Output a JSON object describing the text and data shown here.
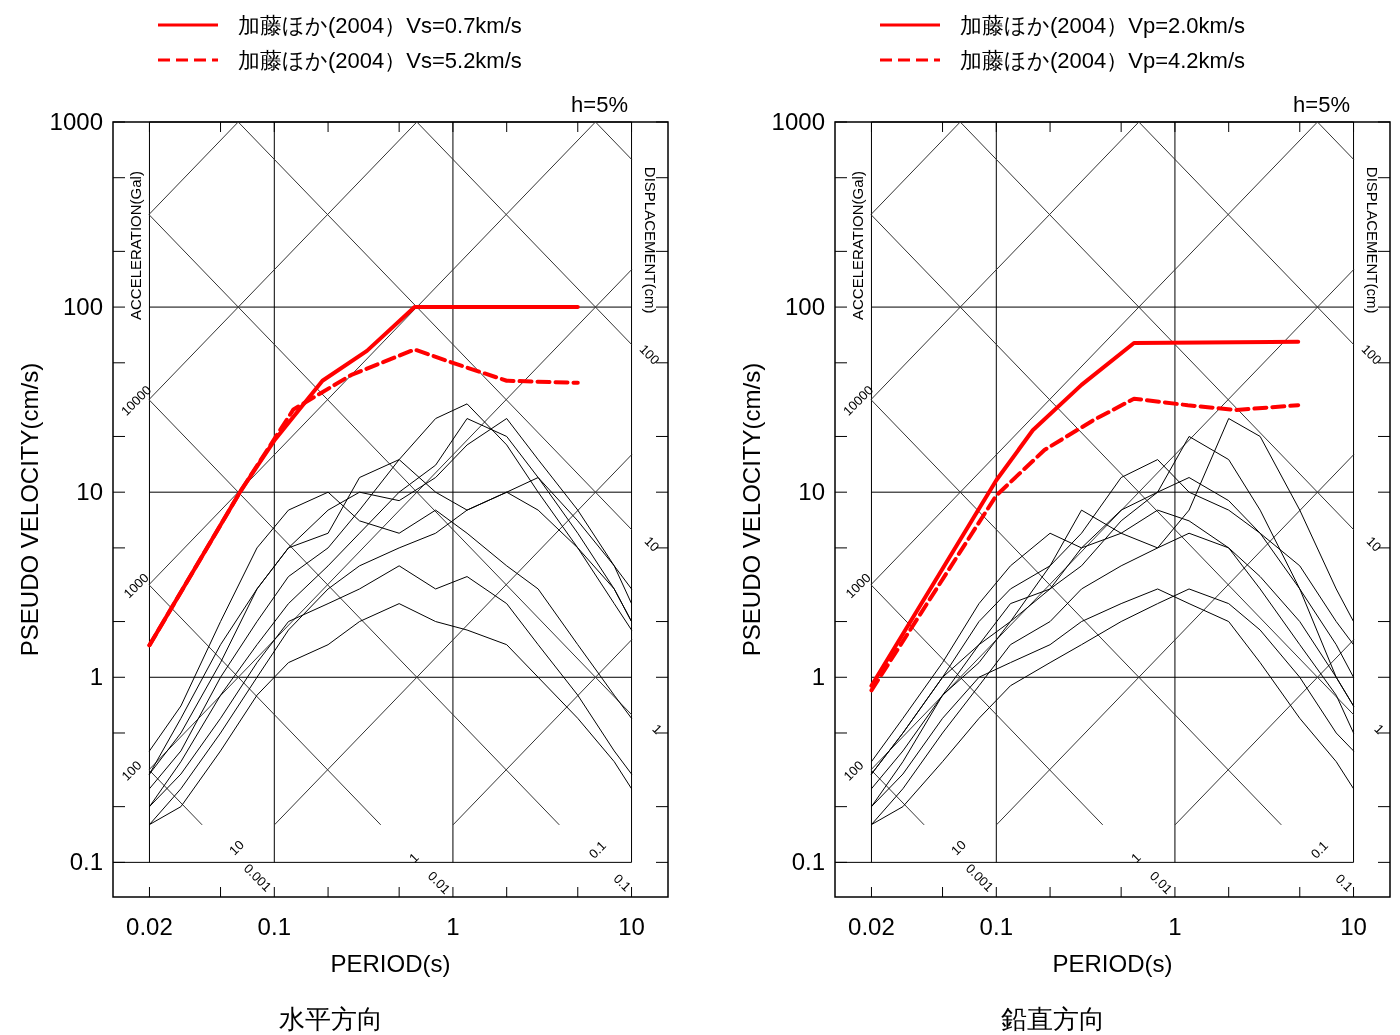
{
  "chart_data": [
    {
      "type": "line",
      "title": "水平方向",
      "xlabel": "PERIOD(s)",
      "ylabel": "PSEUDO VELOCITY(cm/s)",
      "log": "xy",
      "grid": true,
      "legend": "top",
      "xlim": [
        0.0125,
        16
      ],
      "ylim": [
        0.065,
        1000
      ],
      "xticks": [
        0.02,
        {
          "value": 0.05,
          "label": null
        },
        0.1,
        {
          "value": 0.2,
          "label": null
        },
        {
          "value": 0.5,
          "label": null
        },
        1,
        {
          "value": 2,
          "label": null
        },
        {
          "value": 5,
          "label": null
        },
        10
      ],
      "yticks": [
        0.1,
        {
          "value": 0.2,
          "label": null
        },
        {
          "value": 0.5,
          "label": null
        },
        1,
        {
          "value": 2,
          "label": null
        },
        {
          "value": 5,
          "label": null
        },
        10,
        {
          "value": 20,
          "label": null
        },
        {
          "value": 50,
          "label": null
        },
        100,
        {
          "value": 200,
          "label": null
        },
        {
          "value": 500,
          "label": null
        },
        1000
      ],
      "x": [
        0.02,
        0.03,
        0.05,
        0.08,
        0.12,
        0.2,
        0.3,
        0.5,
        0.8,
        1.2,
        2,
        3,
        5,
        8,
        10
      ],
      "annotations": [
        "h=5%",
        "ACCELERATION(Gal)",
        "DISPLACEMENT(cm)",
        "10000",
        "100",
        "1000",
        "10",
        "100",
        "1",
        "10",
        "0.001",
        "1",
        "0.01",
        "0.1",
        "0.1"
      ],
      "series": [
        {
          "color": "#333333",
          "x": [
            0.02,
            0.0628
          ],
          "values": [
            318.3,
            1000
          ]
        },
        {
          "color": "#333333",
          "x": [
            0.02,
            0.628
          ],
          "values": [
            31.83,
            1000
          ]
        },
        {
          "color": "#333333",
          "x": [
            0.02,
            6.28
          ],
          "values": [
            3.183,
            1000
          ]
        },
        {
          "color": "#333333",
          "x": [
            0.02,
            10
          ],
          "values": [
            0.3183,
            159.2
          ]
        },
        {
          "color": "#333333",
          "x": [
            0.1005,
            10
          ],
          "values": [
            0.16,
            15.92
          ]
        },
        {
          "color": "#333333",
          "x": [
            1.005,
            10
          ],
          "values": [
            0.16,
            1.592
          ]
        },
        {
          "color": "#333333",
          "x": [
            0.02,
            0.0393
          ],
          "values": [
            0.3142,
            0.16
          ]
        },
        {
          "color": "#333333",
          "x": [
            0.02,
            0.393
          ],
          "values": [
            3.142,
            0.16
          ]
        },
        {
          "color": "#333333",
          "x": [
            0.02,
            3.927
          ],
          "values": [
            31.42,
            0.16
          ]
        },
        {
          "color": "#333333",
          "x": [
            0.02,
            10
          ],
          "values": [
            314.2,
            0.6283
          ]
        },
        {
          "color": "#333333",
          "x": [
            0.0628,
            10
          ],
          "values": [
            1000,
            6.283
          ]
        },
        {
          "color": "#333333",
          "x": [
            0.628,
            10
          ],
          "values": [
            1000,
            62.83
          ]
        },
        {
          "color": "#333333",
          "x": [
            6.283,
            10
          ],
          "values": [
            1000,
            628.3
          ]
        },
        {
          "color": "#000000",
          "values": [
            0.2,
            0.35,
            0.8,
            1.5,
            2.5,
            4,
            6,
            10,
            14,
            25,
            20,
            12,
            6,
            3,
            2
          ]
        },
        {
          "color": "#000000",
          "values": [
            0.3,
            0.5,
            1.2,
            3,
            5,
            8,
            10,
            9,
            12,
            18,
            25,
            15,
            8,
            4,
            3
          ]
        },
        {
          "color": "#000000",
          "values": [
            0.25,
            0.4,
            1,
            2,
            3.5,
            5,
            8,
            15,
            25,
            30,
            18,
            10,
            5,
            2.5,
            1.8
          ]
        },
        {
          "color": "#000000",
          "values": [
            0.16,
            0.25,
            0.5,
            1,
            1.8,
            3,
            4,
            5,
            6,
            8,
            10,
            8,
            5,
            3,
            2
          ]
        },
        {
          "color": "#000000",
          "values": [
            0.4,
            0.7,
            2,
            5,
            8,
            10,
            7,
            6,
            8,
            6,
            4,
            3,
            1.5,
            0.8,
            0.6
          ]
        },
        {
          "color": "#000000",
          "values": [
            0.2,
            0.3,
            0.6,
            1.2,
            2,
            2.5,
            3,
            4,
            3,
            3.5,
            2.5,
            1.5,
            0.8,
            0.4,
            0.3
          ]
        },
        {
          "color": "#000000",
          "values": [
            0.3,
            0.6,
            1.5,
            3,
            5,
            6,
            12,
            15,
            10,
            8,
            10,
            12,
            7,
            4,
            2.5
          ]
        },
        {
          "color": "#000000",
          "values": [
            0.16,
            0.2,
            0.4,
            0.8,
            1.2,
            1.5,
            2,
            2.5,
            2,
            1.8,
            1.5,
            1,
            0.6,
            0.35,
            0.25
          ]
        },
        {
          "name": "加藤ほか(2004）Vs=0.7km/s",
          "color": "#ff0000",
          "line_style": "solid",
          "x": [
            0.02,
            0.065,
            0.1,
            0.186,
            0.33,
            0.61,
            5.0
          ],
          "values": [
            1.49,
            10.2,
            19,
            40,
            58,
            100,
            100
          ]
        },
        {
          "name": "加藤ほか(2004）Vs=5.2km/s",
          "color": "#ff0000",
          "line_style": "dashed",
          "x": [
            0.02,
            0.065,
            0.128,
            0.27,
            0.61,
            1.06,
            2.0,
            5.0
          ],
          "values": [
            1.49,
            10.2,
            28,
            43,
            59,
            49,
            40,
            39
          ]
        }
      ]
    },
    {
      "type": "line",
      "title": "鉛直方向",
      "xlabel": "PERIOD(s)",
      "ylabel": "PSEUDO VELOCITY(cm/s)",
      "log": "xy",
      "grid": true,
      "legend": "top",
      "xlim": [
        0.0125,
        16
      ],
      "ylim": [
        0.065,
        1000
      ],
      "xticks": [
        0.02,
        {
          "value": 0.05,
          "label": null
        },
        0.1,
        {
          "value": 0.2,
          "label": null
        },
        {
          "value": 0.5,
          "label": null
        },
        1,
        {
          "value": 2,
          "label": null
        },
        {
          "value": 5,
          "label": null
        },
        10
      ],
      "yticks": [
        0.1,
        {
          "value": 0.2,
          "label": null
        },
        {
          "value": 0.5,
          "label": null
        },
        1,
        {
          "value": 2,
          "label": null
        },
        {
          "value": 5,
          "label": null
        },
        10,
        {
          "value": 20,
          "label": null
        },
        {
          "value": 50,
          "label": null
        },
        100,
        {
          "value": 200,
          "label": null
        },
        {
          "value": 500,
          "label": null
        },
        1000
      ],
      "x": [
        0.02,
        0.03,
        0.05,
        0.08,
        0.12,
        0.2,
        0.3,
        0.5,
        0.8,
        1.2,
        2,
        3,
        5,
        8,
        10
      ],
      "annotations": [
        "h=5%",
        "ACCELERATION(Gal)",
        "DISPLACEMENT(cm)",
        "10000",
        "100",
        "1000",
        "10",
        "100",
        "1",
        "10",
        "0.001",
        "1",
        "0.01",
        "0.1",
        "0.1"
      ],
      "series": [
        {
          "color": "#333333",
          "x": [
            0.02,
            0.0628
          ],
          "values": [
            318.3,
            1000
          ]
        },
        {
          "color": "#333333",
          "x": [
            0.02,
            0.628
          ],
          "values": [
            31.83,
            1000
          ]
        },
        {
          "color": "#333333",
          "x": [
            0.02,
            6.28
          ],
          "values": [
            3.183,
            1000
          ]
        },
        {
          "color": "#333333",
          "x": [
            0.02,
            10
          ],
          "values": [
            0.3183,
            159.2
          ]
        },
        {
          "color": "#333333",
          "x": [
            0.1005,
            10
          ],
          "values": [
            0.16,
            15.92
          ]
        },
        {
          "color": "#333333",
          "x": [
            1.005,
            10
          ],
          "values": [
            0.16,
            1.592
          ]
        },
        {
          "color": "#333333",
          "x": [
            0.02,
            0.0393
          ],
          "values": [
            0.3142,
            0.16
          ]
        },
        {
          "color": "#333333",
          "x": [
            0.02,
            0.393
          ],
          "values": [
            3.142,
            0.16
          ]
        },
        {
          "color": "#333333",
          "x": [
            0.02,
            3.927
          ],
          "values": [
            31.42,
            0.16
          ]
        },
        {
          "color": "#333333",
          "x": [
            0.02,
            10
          ],
          "values": [
            314.2,
            0.6283
          ]
        },
        {
          "color": "#333333",
          "x": [
            0.0628,
            10
          ],
          "values": [
            1000,
            6.283
          ]
        },
        {
          "color": "#333333",
          "x": [
            0.628,
            10
          ],
          "values": [
            1000,
            62.83
          ]
        },
        {
          "color": "#333333",
          "x": [
            6.283,
            10
          ],
          "values": [
            1000,
            628.3
          ]
        },
        {
          "color": "#000000",
          "values": [
            0.2,
            0.35,
            0.8,
            1.5,
            2,
            3,
            5,
            8,
            10,
            20,
            15,
            8,
            3,
            1,
            0.7
          ]
        },
        {
          "color": "#000000",
          "values": [
            0.3,
            0.5,
            1,
            2,
            3,
            4,
            6,
            12,
            15,
            10,
            8,
            6,
            3,
            1.5,
            1
          ]
        },
        {
          "color": "#000000",
          "values": [
            0.16,
            0.25,
            0.5,
            0.9,
            1.5,
            2,
            3,
            4,
            5,
            6,
            5,
            3,
            1.5,
            0.8,
            0.5
          ]
        },
        {
          "color": "#000000",
          "values": [
            0.25,
            0.4,
            0.8,
            1.2,
            2,
            4,
            8,
            6,
            5,
            8,
            25,
            20,
            8,
            3,
            2
          ]
        },
        {
          "color": "#000000",
          "values": [
            0.2,
            0.3,
            0.6,
            1,
            1.2,
            1.5,
            2,
            2.5,
            3,
            2.5,
            2,
            1.2,
            0.6,
            0.35,
            0.25
          ]
        },
        {
          "color": "#000000",
          "values": [
            0.3,
            0.5,
            1,
            1.5,
            2.5,
            3,
            4,
            7,
            10,
            12,
            9,
            6,
            4,
            2,
            1.5
          ]
        },
        {
          "color": "#000000",
          "values": [
            0.16,
            0.2,
            0.35,
            0.6,
            0.9,
            1.2,
            1.5,
            2,
            2.5,
            3,
            2.5,
            1.8,
            1,
            0.5,
            0.4
          ]
        },
        {
          "color": "#000000",
          "values": [
            0.35,
            0.6,
            1.2,
            2.5,
            4,
            6,
            5,
            6,
            8,
            7,
            5,
            3.5,
            2,
            1,
            0.7
          ]
        },
        {
          "name": "加藤ほか(2004）Vp=2.0km/s",
          "color": "#ff0000",
          "line_style": "solid",
          "x": [
            0.02,
            0.1,
            0.16,
            0.3,
            0.59,
            4.9
          ],
          "values": [
            0.9,
            11.6,
            21.6,
            38,
            64,
            65
          ]
        },
        {
          "name": "加藤ほか(2004）Vp=4.2km/s",
          "color": "#ff0000",
          "line_style": "dashed",
          "x": [
            0.02,
            0.1,
            0.186,
            0.35,
            0.59,
            1.18,
            2.2,
            4.9
          ],
          "values": [
            0.85,
            9.6,
            16.9,
            24.5,
            32,
            29.5,
            27.8,
            29.5
          ]
        }
      ]
    }
  ]
}
